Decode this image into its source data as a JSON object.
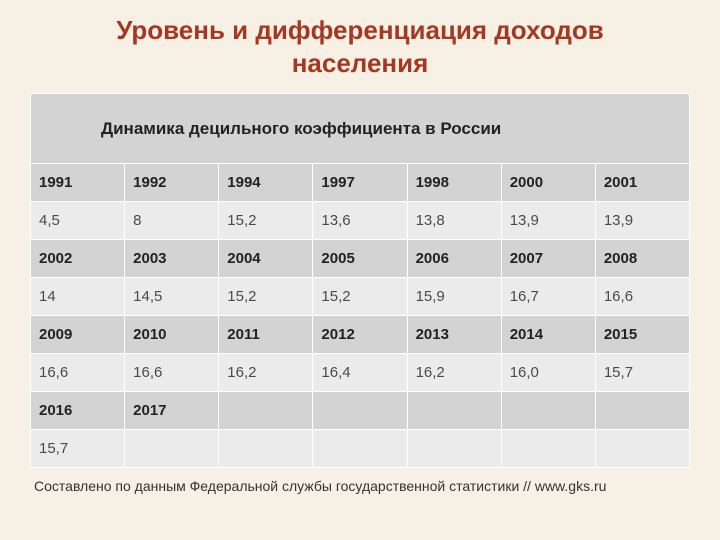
{
  "title_line1": "Уровень и дифференциация доходов",
  "title_line2": "населения",
  "table_title": "Динамика децильного коэффициента в России",
  "rows": [
    {
      "type": "years",
      "cells": [
        "1991",
        "1992",
        "1994",
        "1997",
        "1998",
        "2000",
        "2001"
      ]
    },
    {
      "type": "values",
      "cells": [
        "4,5",
        "8",
        "15,2",
        "13,6",
        "13,8",
        "13,9",
        "13,9"
      ]
    },
    {
      "type": "years",
      "cells": [
        "2002",
        "2003",
        "2004",
        "2005",
        "2006",
        "2007",
        "2008"
      ]
    },
    {
      "type": "values",
      "cells": [
        "14",
        "14,5",
        "15,2",
        "15,2",
        "15,9",
        "16,7",
        "16,6"
      ]
    },
    {
      "type": "years",
      "cells": [
        "2009",
        "2010",
        "2011",
        "2012",
        "2013",
        "2014",
        "2015"
      ]
    },
    {
      "type": "values",
      "cells": [
        "16,6",
        "16,6",
        "16,2",
        "16,4",
        "16,2",
        "16,0",
        "15,7"
      ]
    },
    {
      "type": "years",
      "cells": [
        "2016",
        "2017",
        "",
        "",
        "",
        "",
        ""
      ]
    },
    {
      "type": "values",
      "cells": [
        "15,7",
        "",
        "",
        "",
        "",
        "",
        ""
      ]
    }
  ],
  "source": "Составлено по данным Федеральной службы государственной статистики // www.gks.ru",
  "columns": 7,
  "colors": {
    "background": "#f7f1e5",
    "title": "#a63822",
    "year_row_bg": "#d3d3d3",
    "value_row_bg": "#ebebeb",
    "cell_border": "#ffffff",
    "text": "#3a3a3a"
  },
  "fontsize": {
    "title": 26,
    "table_title": 17,
    "cells": 15,
    "source": 14
  }
}
